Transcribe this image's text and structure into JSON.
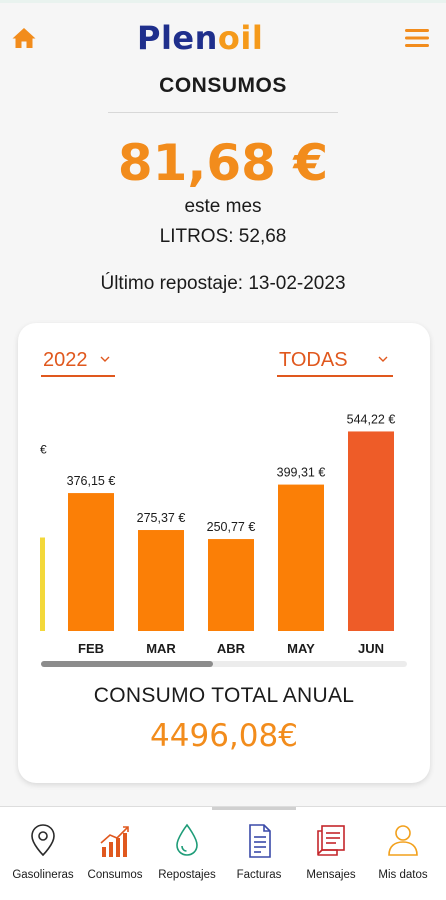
{
  "header": {
    "logo_part1": "Plen",
    "logo_part2": "oil",
    "home_icon": "home-icon",
    "menu_icon": "hamburger-menu-icon",
    "accent_color": "#f28c1c"
  },
  "summary": {
    "title": "CONSUMOS",
    "amount": "81,68 €",
    "period": "este mes",
    "litros": "LITROS: 52,68",
    "last_refuel": "Último repostaje: 13-02-2023"
  },
  "filters": {
    "year": "2022",
    "type": "TODAS"
  },
  "chart_data": {
    "type": "bar",
    "categories": [
      "FEB",
      "MAR",
      "ABR",
      "MAY",
      "JUN"
    ],
    "values": [
      376.15,
      275.37,
      250.77,
      399.31,
      544.22
    ],
    "data_labels": [
      "376,15 €",
      "275,37 €",
      "250,77 €",
      "399,31 €",
      "544,22 €"
    ],
    "ylim": [
      0,
      600
    ],
    "grid": false,
    "bar_colors": [
      "#fb7f06",
      "#fb7f06",
      "#fb7f06",
      "#fb7f06",
      "#ee5c28"
    ],
    "partial_previous": {
      "label": "€",
      "value": 255,
      "color": "#f3d83a"
    },
    "scroll_fraction": 0.47
  },
  "annual": {
    "label": "CONSUMO TOTAL ANUAL",
    "value": "4496,08€"
  },
  "nav": {
    "items": [
      {
        "label": "Gasolineras",
        "icon": "map-pin-icon"
      },
      {
        "label": "Consumos",
        "icon": "bar-chart-icon"
      },
      {
        "label": "Repostajes",
        "icon": "fuel-drop-icon"
      },
      {
        "label": "Facturas",
        "icon": "invoice-icon"
      },
      {
        "label": "Mensajes",
        "icon": "messages-icon"
      },
      {
        "label": "Mis datos",
        "icon": "user-icon"
      }
    ]
  }
}
